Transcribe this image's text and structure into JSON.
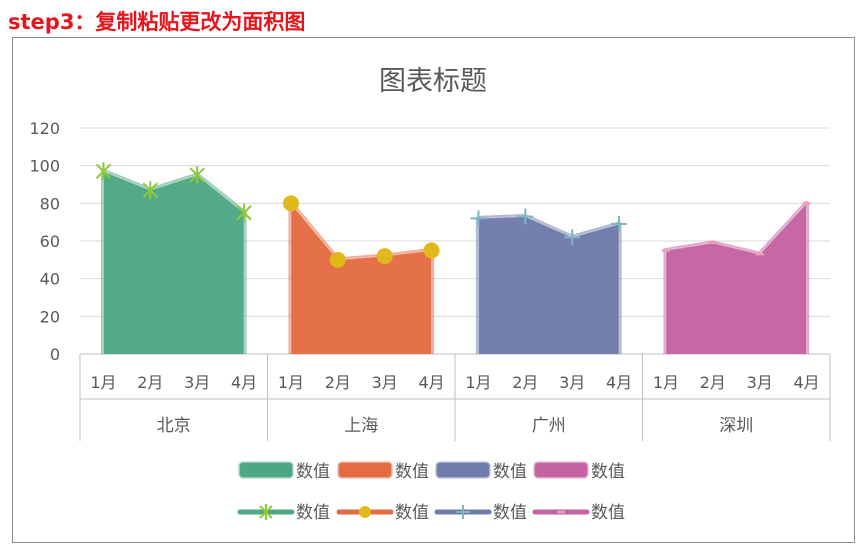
{
  "header": {
    "step_title": "step3：复制粘贴更改为面积图"
  },
  "chart_data": {
    "type": "area",
    "title": "图表标题",
    "ylim": [
      0,
      120
    ],
    "yticks": [
      0,
      20,
      40,
      60,
      80,
      100,
      120
    ],
    "grid": true,
    "legend_position": "bottom",
    "groups": [
      {
        "name": "北京",
        "months": [
          "1月",
          "2月",
          "3月",
          "4月"
        ],
        "values": [
          97,
          87,
          95,
          75
        ],
        "color": "#4ea783",
        "marker": "asterisk",
        "marker_color": "#8fc83a"
      },
      {
        "name": "上海",
        "months": [
          "1月",
          "2月",
          "3月",
          "4月"
        ],
        "values": [
          80,
          50,
          52,
          55
        ],
        "color": "#e36c44",
        "marker": "circle",
        "marker_color": "#e0b81b"
      },
      {
        "name": "广州",
        "months": [
          "1月",
          "2月",
          "3月",
          "4月"
        ],
        "values": [
          72,
          73,
          62,
          69
        ],
        "color": "#6f7bab",
        "marker": "plus",
        "marker_color": "#7eb6c2"
      },
      {
        "name": "深圳",
        "months": [
          "1月",
          "2月",
          "3月",
          "4月"
        ],
        "values": [
          55,
          59,
          53,
          80
        ],
        "color": "#c463a2",
        "marker": "dash",
        "marker_color": "#f09fb5"
      }
    ],
    "legend_area": [
      "数值",
      "数值",
      "数值",
      "数值"
    ],
    "legend_line": [
      "数值",
      "数值",
      "数值",
      "数值"
    ]
  }
}
